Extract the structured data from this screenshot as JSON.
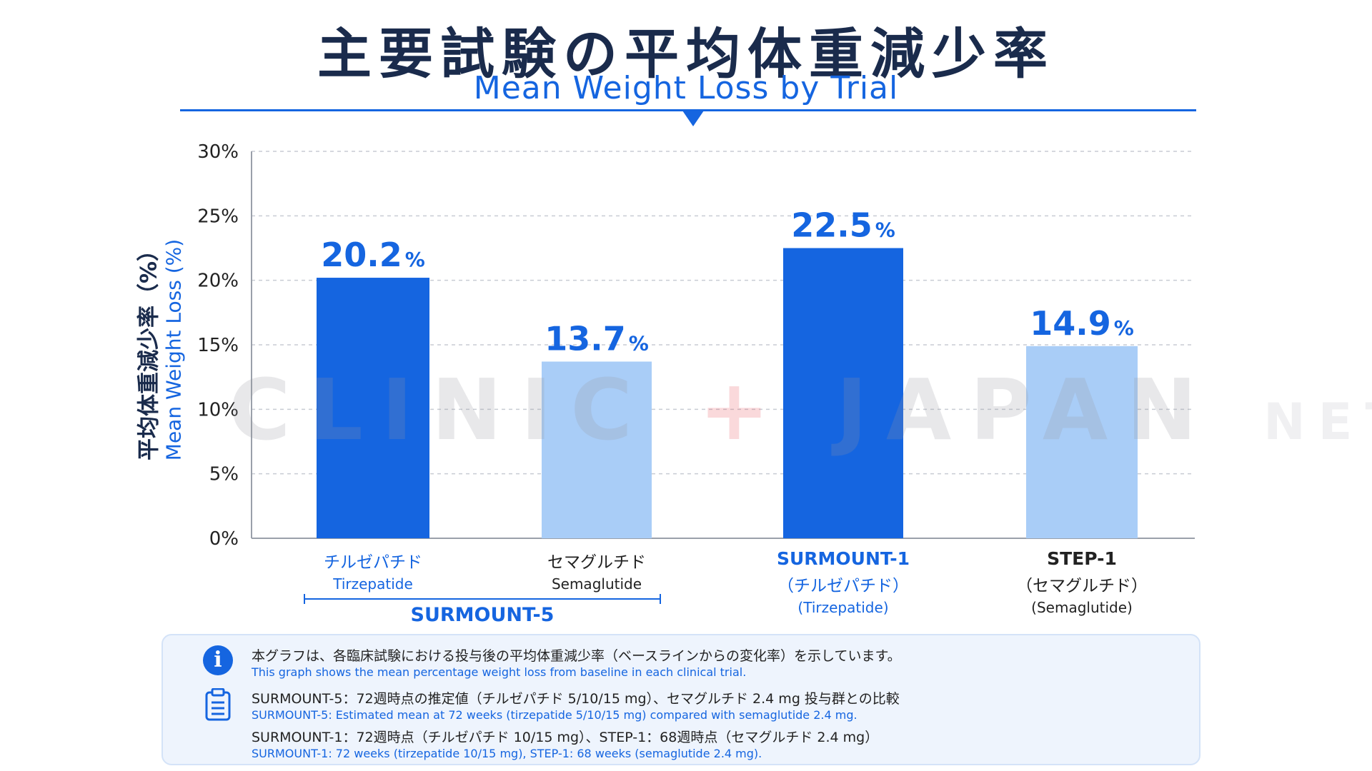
{
  "header": {
    "title_jp": "主要試験の平均体重減少率",
    "title_en": "Mean Weight Loss by Trial"
  },
  "axis": {
    "ylabel_jp": "平均体重減少率（%）",
    "ylabel_en": "Mean Weight Loss (%)"
  },
  "watermark": {
    "text_main": "CLINIC",
    "text_plus": "+",
    "text_second": "JAPAN",
    "text_small": "NET"
  },
  "categories": [
    {
      "jp": "チルゼパチド",
      "en": "Tirzepatide"
    },
    {
      "jp": "セマグルチド",
      "en": "Semaglutide"
    },
    {
      "jp": "SURMOUNT-1",
      "jp2": "（チルゼパチド）",
      "en": "(Tirzepatide)"
    },
    {
      "jp": "STEP-1",
      "jp2": "（セマグルチド）",
      "en": "(Semaglutide)"
    }
  ],
  "group": {
    "label": "SURMOUNT-5"
  },
  "notes": {
    "line1_jp": "本グラフは、各臨床試験における投与後の平均体重減少率（ベースラインからの変化率）を示しています。",
    "line1_en": "This graph shows the mean percentage weight loss from baseline in each clinical trial.",
    "line2_jp": "SURMOUNT-5：72週時点の推定値（チルゼパチド 5/10/15 mg）、セマグルチド 2.4 mg 投与群との比較",
    "line2_en": "SURMOUNT-5: Estimated mean at 72 weeks (tirzepatide 5/10/15 mg) compared with semaglutide 2.4 mg.",
    "line3_jp": "SURMOUNT-1：72週時点（チルゼパチド 10/15 mg）、STEP-1：68週時点（セマグルチド 2.4 mg）",
    "line3_en": "SURMOUNT-1: 72 weeks (tirzepatide 10/15 mg), STEP-1: 68 weeks (semaglutide 2.4 mg)."
  },
  "icons": {
    "info": "info-icon",
    "notes": "clipboard-icon"
  },
  "chart_data": {
    "type": "bar",
    "title": "主要試験の平均体重減少率",
    "subtitle": "Mean Weight Loss by Trial",
    "ylabel": "平均体重減少率（%） / Mean Weight Loss (%)",
    "ylim": [
      0,
      30
    ],
    "yticks": [
      0,
      5,
      10,
      15,
      20,
      25,
      30
    ],
    "ytick_labels": [
      "0%",
      "5%",
      "10%",
      "15%",
      "20%",
      "25%",
      "30%"
    ],
    "grid": true,
    "categories": [
      "チルゼパチド Tirzepatide",
      "セマグルチド Semaglutide",
      "SURMOUNT-1 （チルゼパチド） (Tirzepatide)",
      "STEP-1 （セマグルチド） (Semaglutide)"
    ],
    "values": [
      20.2,
      13.7,
      22.5,
      14.9
    ],
    "value_labels": [
      "20.2",
      "13.7",
      "22.5",
      "14.9"
    ],
    "value_unit": "%",
    "bar_colors": [
      "#1565e0",
      "#a9cdf7",
      "#1565e0",
      "#a9cdf7"
    ],
    "label_colors": [
      "#1565e0",
      "#1565e0",
      "#1565e0",
      "#1565e0"
    ]
  },
  "colors": {
    "accent": "#1565e0",
    "light": "#a9cdf7",
    "title": "#1a2b4c"
  }
}
